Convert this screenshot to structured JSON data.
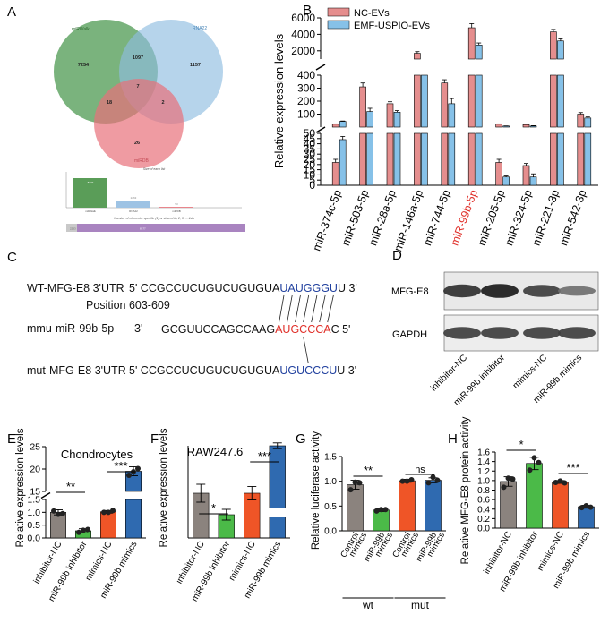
{
  "panel_letters": {
    "a": "A",
    "b": "B",
    "c": "C",
    "d": "D",
    "e": "E",
    "f": "F",
    "g": "G",
    "h": "H"
  },
  "venn": {
    "sets": [
      "miRWalk",
      "RNA22",
      "miRDB"
    ],
    "counts": {
      "a_only": "7254",
      "b_only": "1157",
      "c_only": "26",
      "ab": "1097",
      "ac": "18",
      "bc": "2",
      "abc": "7"
    },
    "set_colors": [
      "#4e9a52",
      "#8fbde0",
      "#e8707a"
    ],
    "bar_title": "Size of each list",
    "bar_values": [
      "8377",
      "2263",
      "53"
    ],
    "bar_caption": "Number of elements: specific (1) or shared by 2, 3, ... lists",
    "strip_values": [
      "8377",
      "2263"
    ]
  },
  "panel_c": {
    "wt_label": "WT-MFG-E8  3'UTR",
    "wt_prefix": "5' CCGCCUCUGUCUGUGUA",
    "wt_site": "UAUGGGU",
    "wt_suffix": "U  3'",
    "position": "Position 603-609",
    "mir_label": "mmu-miR-99b-5p",
    "mir_end": "3'",
    "mir_prefix": "GCGUUCCAGCCAAG",
    "mir_seed": "AUGCCCA",
    "mir_suffix": "C  5'",
    "mut_label": "mut-MFG-E8  3'UTR",
    "mut_prefix": "5' CCGCCUCUGUCUGUGUA",
    "mut_site": "UGUCCCU",
    "mut_suffix": "U  3'",
    "site_color": "#1f3f9e",
    "seed_color": "#e0302a"
  },
  "panel_d": {
    "rows": [
      "MFG-E8",
      "GAPDH"
    ],
    "lanes": [
      "inhibitor-NC",
      "miR-99b inhibitor",
      "mimics-NC",
      "miR-99b mimics"
    ],
    "band_intensity": {
      "MFG-E8": [
        0.8,
        0.95,
        0.7,
        0.35
      ],
      "GAPDH": [
        0.7,
        0.7,
        0.7,
        0.7
      ]
    }
  },
  "chart_data": [
    {
      "id": "B",
      "type": "bar",
      "title": "",
      "ylabel": "Relative expression levels",
      "xlabel": "",
      "categories": [
        "miR-374c-5p",
        "miR-503-5p",
        "miR-28a-5p",
        "miR-146a-5p",
        "miR-744-5p",
        "miR-99b-5p",
        "miR-205-5p",
        "miR-324-5p",
        "miR-221-3p",
        "miR-542-3p"
      ],
      "highlight_category": "miR-99b-5p",
      "highlight_color": "#e0302a",
      "series": [
        {
          "name": "NC-EVs",
          "color": "#e58e8e",
          "values": [
            22,
            310,
            180,
            1700,
            340,
            4800,
            22,
            19,
            4300,
            100
          ],
          "err": [
            3,
            30,
            15,
            200,
            25,
            500,
            3,
            2,
            300,
            12
          ]
        },
        {
          "name": "EMF-USPIO-EVs",
          "color": "#86c1e8",
          "values": [
            44,
            120,
            115,
            1000,
            180,
            2700,
            8,
            8,
            3200,
            70
          ],
          "err": [
            3,
            25,
            12,
            150,
            40,
            250,
            1,
            3,
            250,
            8
          ]
        }
      ],
      "axis_segments": [
        {
          "range": [
            0,
            50
          ],
          "ticks": [
            0,
            5,
            10,
            15,
            20,
            25,
            30,
            35,
            40,
            45,
            50
          ]
        },
        {
          "range": [
            0,
            400
          ],
          "ticks": [
            100,
            200,
            300,
            400
          ]
        },
        {
          "range": [
            1000,
            6000
          ],
          "ticks": [
            2000,
            4000,
            6000
          ]
        }
      ],
      "legend_position": "top-left"
    },
    {
      "id": "E",
      "type": "bar",
      "title": "Chondrocytes",
      "ylabel": "Relative expression levels",
      "xlabel": "",
      "categories": [
        "inhibitor-NC",
        "miR-99b inhibitor",
        "mimics-NC",
        "miR-99b mimics"
      ],
      "values": [
        1.0,
        0.28,
        1.02,
        19.5
      ],
      "err": [
        0.1,
        0.08,
        0.05,
        1.0
      ],
      "points": [
        [
          1.05,
          0.92,
          0.95
        ],
        [
          0.22,
          0.3,
          0.33
        ],
        [
          1.0,
          1.0,
          1.07
        ],
        [
          18.6,
          19.4,
          20.1
        ]
      ],
      "colors": [
        "#8b837e",
        "#4bba48",
        "#ef5527",
        "#2f6ab0"
      ],
      "axis_segments": [
        {
          "range": [
            0,
            1.5
          ],
          "ticks": [
            0,
            0.5,
            1.0,
            1.5
          ]
        },
        {
          "range": [
            15,
            25
          ],
          "ticks": [
            15,
            20,
            25
          ]
        }
      ],
      "tick_labels": [
        "0.0",
        "0.5",
        "1.0",
        "1.5",
        "15",
        "20",
        "25"
      ],
      "significance": [
        {
          "between": [
            "inhibitor-NC",
            "miR-99b inhibitor"
          ],
          "label": "**"
        },
        {
          "between": [
            "mimics-NC",
            "miR-99b mimics"
          ],
          "label": "***"
        }
      ]
    },
    {
      "id": "F",
      "type": "bar",
      "title": "RAW247.6",
      "ylabel": "Relative expression levels",
      "xlabel": "",
      "categories": [
        "inhibitor-NC",
        "miR-99b inhibitor",
        "mimics-NC",
        "miR-99b mimics"
      ],
      "values": [
        1.0,
        0.52,
        1.0,
        17.5
      ],
      "err": [
        0.2,
        0.12,
        0.15,
        0.8
      ],
      "colors": [
        "#8b837e",
        "#4bba48",
        "#ef5527",
        "#2f6ab0"
      ],
      "significance": [
        {
          "between": [
            "inhibitor-NC",
            "miR-99b inhibitor"
          ],
          "label": "*"
        },
        {
          "between": [
            "mimics-NC",
            "miR-99b mimics"
          ],
          "label": "***"
        }
      ]
    },
    {
      "id": "G",
      "type": "bar",
      "title": "",
      "ylabel": "Relative luciferase activity",
      "xlabel": "",
      "categories": [
        "Control mimics",
        "miR-99b mimics",
        "Control mimics",
        "miR-99b mimics"
      ],
      "category_lines": [
        [
          "Control",
          "mimics"
        ],
        [
          "miR-99b",
          "mimics"
        ],
        [
          "Control",
          "mimics"
        ],
        [
          "miR-99b",
          "mimics"
        ]
      ],
      "groups": [
        {
          "label": "wt",
          "span": [
            0,
            1
          ]
        },
        {
          "label": "mut",
          "span": [
            2,
            3
          ]
        }
      ],
      "values": [
        0.93,
        0.42,
        1.01,
        1.02
      ],
      "err": [
        0.09,
        0.03,
        0.03,
        0.05
      ],
      "points": [
        [
          0.83,
          0.98,
          0.97
        ],
        [
          0.4,
          0.43,
          0.43
        ],
        [
          1.0,
          1.0,
          1.03
        ],
        [
          0.97,
          1.08,
          1.02
        ]
      ],
      "colors": [
        "#8b837e",
        "#4bba48",
        "#ef5527",
        "#2f6ab0"
      ],
      "ylim": [
        0,
        1.5
      ],
      "ticks": [
        0.0,
        0.5,
        1.0,
        1.5
      ],
      "significance": [
        {
          "between": [
            0,
            1
          ],
          "label": "**"
        },
        {
          "between": [
            2,
            3
          ],
          "label": "ns"
        }
      ]
    },
    {
      "id": "H",
      "type": "bar",
      "title": "",
      "ylabel": "Relative MFG-E8 protein activity",
      "xlabel": "",
      "categories": [
        "inhibitor-NC",
        "miR-99b inhibitor",
        "mimics-NC",
        "miR-99b mimics"
      ],
      "values": [
        0.98,
        1.36,
        0.97,
        0.45
      ],
      "err": [
        0.1,
        0.13,
        0.03,
        0.03
      ],
      "points": [
        [
          0.86,
          1.05,
          1.03
        ],
        [
          1.22,
          1.48,
          1.38
        ],
        [
          0.96,
          0.99,
          0.95
        ],
        [
          0.43,
          0.47,
          0.44
        ]
      ],
      "colors": [
        "#8b837e",
        "#4bba48",
        "#ef5527",
        "#2f6ab0"
      ],
      "ylim": [
        0,
        1.6
      ],
      "ticks": [
        0.0,
        0.2,
        0.4,
        0.6,
        0.8,
        1.0,
        1.2,
        1.4,
        1.6
      ],
      "significance": [
        {
          "between": [
            0,
            1
          ],
          "label": "*"
        },
        {
          "between": [
            2,
            3
          ],
          "label": "***"
        }
      ]
    }
  ]
}
